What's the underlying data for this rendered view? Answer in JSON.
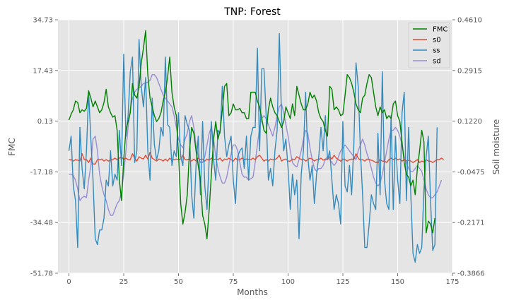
{
  "chart_data": {
    "type": "line",
    "title": "TNP: Forest",
    "xlabel": "Months",
    "ylabel_left": "FMC",
    "ylabel_right": "Soil moisture",
    "xlim": [
      -5,
      175
    ],
    "ylim_left": [
      -51.78,
      34.73
    ],
    "ylim_right": [
      -0.3866,
      0.461
    ],
    "xticks": [
      0,
      25,
      50,
      75,
      100,
      125,
      150,
      175
    ],
    "yticks_left": [
      "34.73",
      "17.43",
      "0.13",
      "-17.18",
      "-34.48",
      "-51.78"
    ],
    "yticks_left_values": [
      34.73,
      17.43,
      0.13,
      -17.18,
      -34.48,
      -51.78
    ],
    "yticks_right": [
      "0.4610",
      "0.2915",
      "0.1220",
      "-0.0475",
      "-0.2171",
      "-0.3866"
    ],
    "yticks_right_values": [
      0.461,
      0.2915,
      0.122,
      -0.0475,
      -0.2171,
      -0.3866
    ],
    "grid": true,
    "legend_position": "top-right",
    "colors": {
      "background": "#e5e5e5",
      "grid": "#ffffff",
      "FMC": "#008000",
      "s0": "#e24a33",
      "ss": "#348abd",
      "sd": "#988ed5"
    },
    "series": [
      {
        "name": "FMC",
        "axis": "left",
        "values": [
          0.5,
          2.5,
          4,
          7,
          6.5,
          3,
          4,
          3.5,
          4.5,
          10.5,
          8,
          5,
          7,
          5,
          3,
          4,
          6.5,
          11,
          5,
          3,
          1.5,
          2,
          -3,
          -20,
          -27,
          -13,
          -3,
          0,
          3,
          13,
          9,
          8,
          12,
          20,
          25,
          31,
          16,
          8,
          5,
          2,
          0,
          1,
          3,
          7,
          10,
          15,
          22,
          10,
          5,
          2,
          -11,
          -28,
          -35,
          -31,
          -25,
          -10,
          -2,
          -4,
          -10,
          -15,
          -20,
          -32,
          -35,
          -40,
          -30,
          -18,
          -6,
          0,
          -6,
          -3,
          4,
          12,
          13,
          2,
          3,
          6,
          4,
          4,
          4.5,
          3,
          3,
          1,
          1,
          10,
          10,
          10,
          7,
          5,
          1,
          -3,
          -4,
          4,
          8,
          5,
          3,
          2,
          0,
          -2,
          0,
          5,
          3,
          1,
          6,
          2,
          12,
          9,
          6,
          4,
          4,
          6,
          10,
          8,
          9,
          7,
          3,
          1,
          0,
          -3,
          -5,
          12,
          11,
          4,
          5,
          4,
          2,
          2.5,
          9,
          16,
          15,
          13,
          10,
          6,
          4,
          3,
          8,
          9,
          13,
          16,
          15,
          10,
          5,
          2,
          5,
          3,
          4,
          1,
          2,
          1,
          6,
          7,
          2,
          0,
          -7,
          -14,
          -18,
          -19,
          -22,
          -20,
          -25,
          -16,
          -10,
          -3,
          -7,
          -38,
          -34,
          -35,
          -38,
          -33
        ]
      },
      {
        "name": "s0",
        "axis": "left",
        "values": [
          -13,
          -13,
          -13.5,
          -13,
          -13.2,
          -13.5,
          -11,
          -13,
          -13,
          -14,
          -12.5,
          -14.5,
          -14.5,
          -13,
          -13,
          -12.8,
          -13.5,
          -13,
          -13.5,
          -13.2,
          -13,
          -12.5,
          -13,
          -12.5,
          -12,
          -13,
          -12.5,
          -13,
          -13,
          -11,
          -12.5,
          -13.5,
          -12,
          -12.5,
          -12.8,
          -11.5,
          -12.8,
          -10.5,
          -12.5,
          -13,
          -13.5,
          -12.8,
          -13,
          -13.5,
          -12.8,
          -13.5,
          -12.5,
          -13.2,
          -13,
          -12.8,
          -13,
          -12.8,
          -11.5,
          -13,
          -13,
          -12.8,
          -13.5,
          -12.8,
          -13.5,
          -12.5,
          -13,
          -12.8,
          -13.5,
          -12.8,
          -13.2,
          -12.5,
          -13,
          -12.8,
          -13,
          -12.5,
          -13.5,
          -12.8,
          -13,
          -12.5,
          -13,
          -13.5,
          -12.5,
          -13.2,
          -13,
          -12.5,
          -13,
          -12.8,
          -13,
          -13,
          -12.5,
          -13,
          -12,
          -11.5,
          -12.5,
          -13.5,
          -13,
          -13.5,
          -12.8,
          -13,
          -13,
          -12.5,
          -11.5,
          -13.5,
          -13,
          -12.8,
          -13.5,
          -13.5,
          -12.8,
          -13,
          -12,
          -12.5,
          -13,
          -12.8,
          -13.5,
          -13,
          -12.5,
          -12.8,
          -13.5,
          -13,
          -13,
          -12.5,
          -13.2,
          -12.8,
          -13,
          -12,
          -12.8,
          -11.5,
          -12.5,
          -13,
          -13.5,
          -12.8,
          -13,
          -13.5,
          -13,
          -12.8,
          -13,
          -11,
          -12.5,
          -13.2,
          -13,
          -13.5,
          -12.8,
          -13,
          -13.2,
          -13.5,
          -14,
          -14,
          -13,
          -13.5,
          -13.5,
          -14,
          -13,
          -12.5,
          -13,
          -12.5,
          -13,
          -12.8,
          -13.5,
          -13,
          -13.5,
          -13.2,
          -13.5,
          -14,
          -13.5,
          -13,
          -14,
          -13.5,
          -13.8,
          -13,
          -13.5,
          -13.5,
          -14,
          -13.5,
          -13,
          -13,
          -12.5,
          -13
        ]
      },
      {
        "name": "ss",
        "axis": "left",
        "values": [
          -10,
          -5,
          -22,
          -27,
          -43,
          -2,
          -16,
          -23,
          -10,
          10,
          -6,
          -20,
          -40,
          -42,
          -37,
          -37,
          -33,
          -20,
          -22,
          -10,
          -22,
          -18,
          -20,
          -3,
          -15,
          23,
          -5,
          2,
          17,
          22,
          -14,
          -10,
          28,
          12,
          5,
          15,
          -10,
          -20,
          8,
          -8,
          -13,
          -10,
          -2,
          -5,
          22,
          -1,
          -2,
          -15,
          -10,
          -12,
          3,
          -12,
          -15,
          2,
          -1,
          -3,
          -25,
          -33,
          -15,
          -5,
          -25,
          0,
          -22,
          -30,
          -13,
          0,
          -13,
          -20,
          -3,
          -4,
          12,
          -5,
          -12,
          -8,
          -5,
          -20,
          -28,
          -12,
          -10,
          -9,
          -16,
          -5,
          -20,
          -5,
          -2,
          -2,
          25,
          -10,
          18,
          18,
          2,
          -20,
          -16,
          -22,
          -10,
          -3,
          30,
          2,
          -10,
          -6,
          -16,
          -30,
          -18,
          -25,
          -20,
          -40,
          -18,
          -10,
          10,
          -12,
          -20,
          -15,
          -28,
          -18,
          -12,
          -2,
          -10,
          2,
          -13,
          -10,
          -20,
          -30,
          -25,
          -28,
          -35,
          0,
          -22,
          -24,
          -15,
          -25,
          -8,
          20,
          12,
          -10,
          -25,
          -43,
          -43,
          -35,
          -25,
          -28,
          -30,
          -4,
          -25,
          17,
          -20,
          -28,
          -30,
          2,
          -30,
          -5,
          -20,
          -28,
          3,
          10,
          -27,
          -2,
          -25,
          -45,
          -48,
          -42,
          -45,
          -43,
          -23,
          -12,
          -5,
          -27,
          -44,
          -42,
          -2
        ]
      },
      {
        "name": "sd",
        "axis": "left",
        "values": [
          -18,
          -18,
          -18.5,
          -20,
          -23,
          -27,
          -26,
          -25.5,
          -26,
          -20,
          -15,
          -6,
          -5,
          -10,
          -18,
          -22,
          -25,
          -27,
          -30,
          -32,
          -32,
          -30,
          -28,
          -27,
          -24,
          -18,
          -10,
          -2,
          4,
          8,
          10,
          11,
          11.5,
          12,
          13,
          13,
          13.5,
          14,
          16,
          16,
          15,
          13,
          11,
          9,
          8,
          7,
          6,
          5,
          2,
          -2,
          -6,
          -8,
          -9,
          -6,
          -4,
          0,
          2,
          -2,
          -8,
          -12,
          -14,
          -14,
          -12,
          -8,
          -4,
          -2,
          -6,
          -12,
          -16,
          -19,
          -21,
          -21,
          -19,
          -15,
          -11,
          -8,
          -8,
          -10,
          -14,
          -18,
          -19,
          -19,
          -20,
          -19.5,
          -19,
          -14,
          -8,
          -2,
          1,
          2,
          1,
          -1,
          -3,
          -5,
          -2,
          2,
          5,
          6,
          3,
          -1,
          -5,
          -10,
          -14,
          -15,
          -15.5,
          -13,
          -10,
          -6,
          -3,
          -4,
          -9,
          -13,
          -16,
          -17,
          -16,
          -16,
          -15,
          -13,
          -12,
          -13,
          -14,
          -15,
          -14,
          -12,
          -10,
          -9,
          -8,
          -9,
          -10,
          -11,
          -12,
          -13,
          -10,
          -8,
          -6,
          -8,
          -11,
          -13,
          -16,
          -19,
          -21,
          -22,
          -21,
          -18,
          -14,
          -10,
          -6,
          -3,
          -3,
          -2,
          -3,
          -5,
          -8,
          -12,
          -14,
          -16,
          -17,
          -17,
          -16,
          -15,
          -16,
          -17,
          -20,
          -23,
          -25,
          -26,
          -26,
          -25,
          -24,
          -22,
          -20
        ]
      }
    ]
  }
}
